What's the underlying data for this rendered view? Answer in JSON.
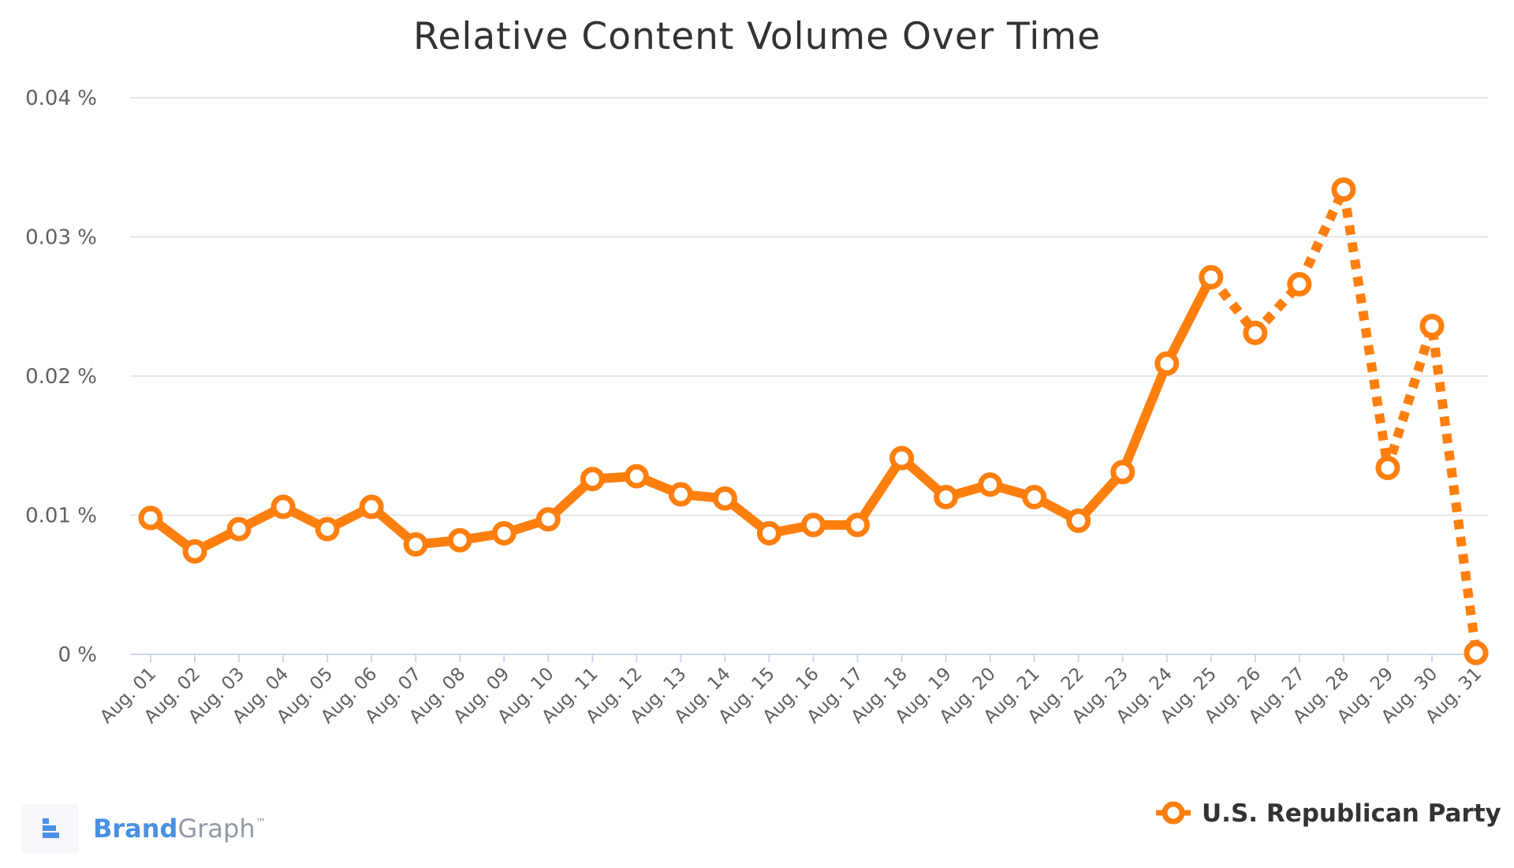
{
  "chart_data": {
    "type": "line",
    "title": "Relative Content Volume Over Time",
    "xlabel": "",
    "ylabel": "",
    "categories": [
      "Aug. 01",
      "Aug. 02",
      "Aug. 03",
      "Aug. 04",
      "Aug. 05",
      "Aug. 06",
      "Aug. 07",
      "Aug. 08",
      "Aug. 09",
      "Aug. 10",
      "Aug. 11",
      "Aug. 12",
      "Aug. 13",
      "Aug. 14",
      "Aug. 15",
      "Aug. 16",
      "Aug. 17",
      "Aug. 18",
      "Aug. 19",
      "Aug. 20",
      "Aug. 21",
      "Aug. 22",
      "Aug. 23",
      "Aug. 24",
      "Aug. 25",
      "Aug. 26",
      "Aug. 27",
      "Aug. 28",
      "Aug. 29",
      "Aug. 30",
      "Aug. 31"
    ],
    "y_ticks": [
      0,
      0.01,
      0.02,
      0.03,
      0.04
    ],
    "y_tick_labels": [
      "0 %",
      "0.01 %",
      "0.02 %",
      "0.03 %",
      "0.04 %"
    ],
    "ylim": [
      0,
      0.04
    ],
    "grid": true,
    "legend_position": "bottom-right",
    "series": [
      {
        "name": "U.S. Republican Party",
        "color": "#ff7f0e",
        "values": [
          0.0098,
          0.0074,
          0.009,
          0.0106,
          0.009,
          0.0106,
          0.0079,
          0.0082,
          0.0087,
          0.0097,
          0.0126,
          0.0128,
          0.0115,
          0.0112,
          0.0087,
          0.0093,
          0.0093,
          0.0141,
          0.0113,
          0.0122,
          0.0113,
          0.0096,
          0.0131,
          0.0209,
          0.0271,
          0.0231,
          0.0266,
          0.0334,
          0.0134,
          0.0236,
          0.0001
        ],
        "solid_until_index": 24,
        "dashed_after": true
      }
    ]
  },
  "brand": {
    "name_part1": "Brand",
    "name_part2": "Graph",
    "trademark": "™",
    "color_primary": "#4a90e2",
    "color_secondary": "#8f9aa6",
    "icon": "brandgraph-logo-icon"
  },
  "colors": {
    "grid": "#e6e6e6",
    "axis": "#ccd6eb",
    "series": "#ff7f0e"
  }
}
